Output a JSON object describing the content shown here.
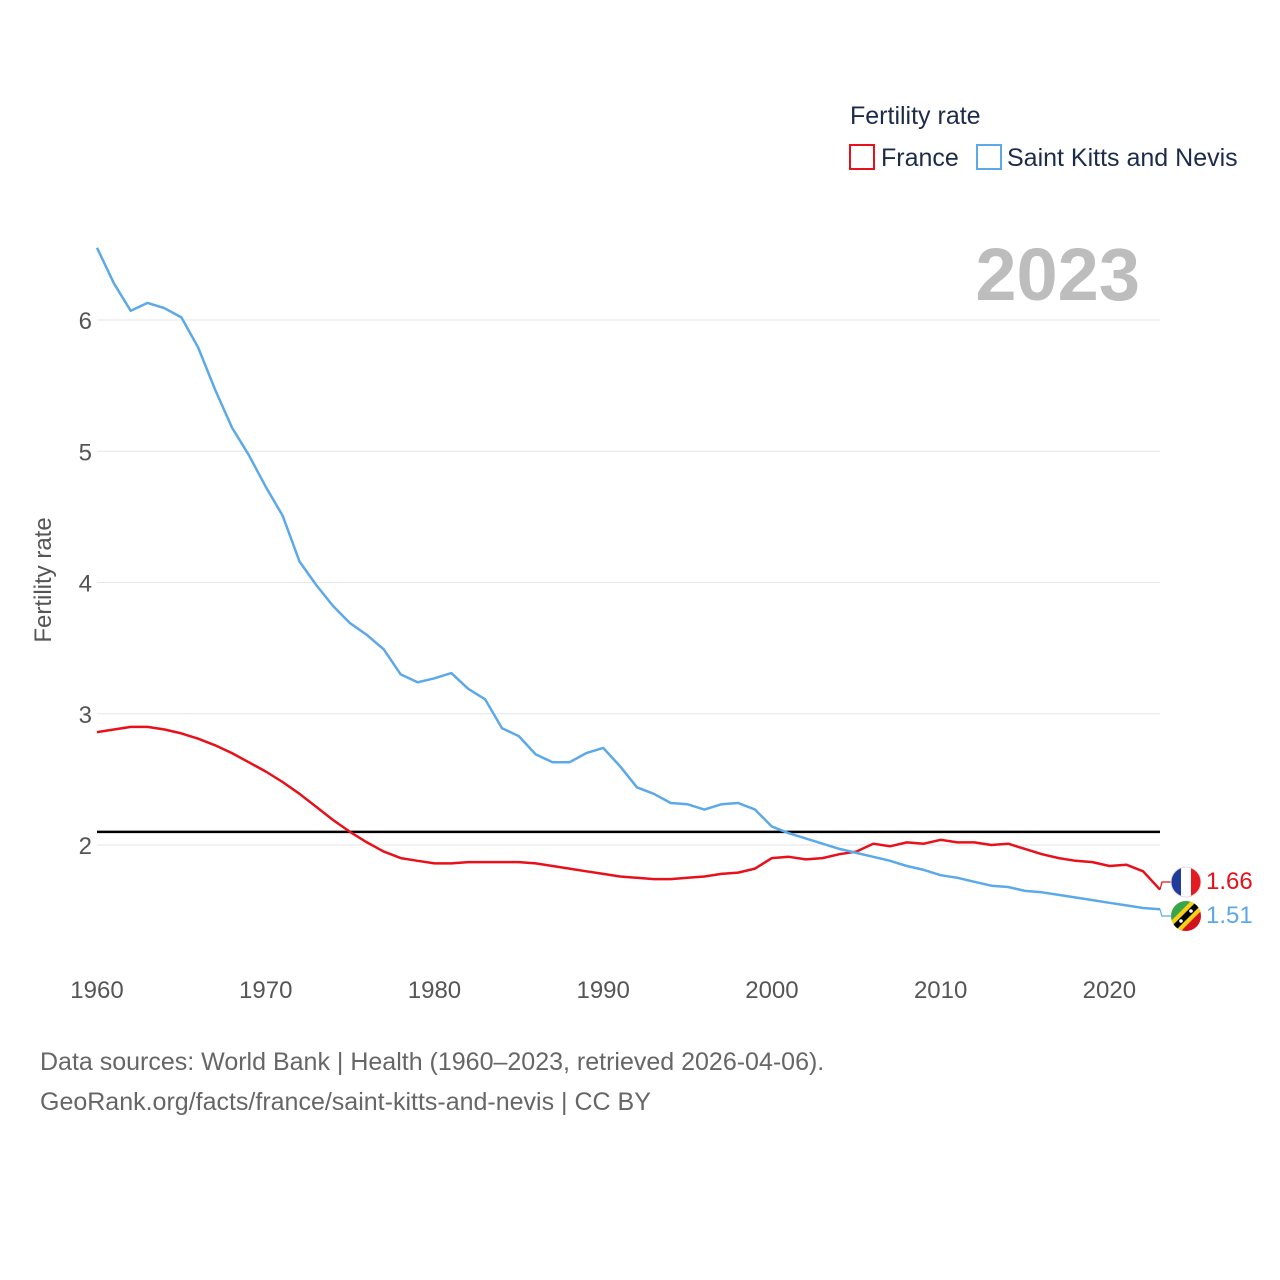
{
  "chart_data": {
    "type": "line",
    "title": "Fertility rate",
    "ylabel": "Fertility rate",
    "xlabel": "",
    "highlight_year": "2023",
    "x_ticks": [
      1960,
      1970,
      1980,
      1990,
      2000,
      2010,
      2020
    ],
    "y_ticks": [
      2,
      3,
      4,
      5,
      6
    ],
    "xlim": [
      1960,
      2023
    ],
    "ylim": [
      1.0,
      6.6
    ],
    "reference_line": {
      "value": 2.1,
      "color": "#000000"
    },
    "grid": true,
    "legend_position": "top-right",
    "x": [
      1960,
      1961,
      1962,
      1963,
      1964,
      1965,
      1966,
      1967,
      1968,
      1969,
      1970,
      1971,
      1972,
      1973,
      1974,
      1975,
      1976,
      1977,
      1978,
      1979,
      1980,
      1981,
      1982,
      1983,
      1984,
      1985,
      1986,
      1987,
      1988,
      1989,
      1990,
      1991,
      1992,
      1993,
      1994,
      1995,
      1996,
      1997,
      1998,
      1999,
      2000,
      2001,
      2002,
      2003,
      2004,
      2005,
      2006,
      2007,
      2008,
      2009,
      2010,
      2011,
      2012,
      2013,
      2014,
      2015,
      2016,
      2017,
      2018,
      2019,
      2020,
      2021,
      2022,
      2023
    ],
    "series": [
      {
        "name": "France",
        "color": "#e8101a",
        "end_label": "1.66",
        "values": [
          2.86,
          2.88,
          2.9,
          2.9,
          2.88,
          2.85,
          2.81,
          2.76,
          2.7,
          2.63,
          2.56,
          2.48,
          2.39,
          2.29,
          2.19,
          2.1,
          2.02,
          1.95,
          1.9,
          1.88,
          1.86,
          1.86,
          1.87,
          1.87,
          1.87,
          1.87,
          1.86,
          1.84,
          1.82,
          1.8,
          1.78,
          1.76,
          1.75,
          1.74,
          1.74,
          1.75,
          1.76,
          1.78,
          1.79,
          1.82,
          1.9,
          1.91,
          1.89,
          1.9,
          1.93,
          1.95,
          2.01,
          1.99,
          2.02,
          2.01,
          2.04,
          2.02,
          2.02,
          2.0,
          2.01,
          1.97,
          1.93,
          1.9,
          1.88,
          1.87,
          1.84,
          1.85,
          1.8,
          1.66
        ]
      },
      {
        "name": "Saint Kitts and Nevis",
        "color": "#5ca9e8",
        "end_label": "1.51",
        "values": [
          6.55,
          6.28,
          6.07,
          6.13,
          6.09,
          6.02,
          5.79,
          5.47,
          5.18,
          4.97,
          4.73,
          4.51,
          4.16,
          3.98,
          3.82,
          3.69,
          3.6,
          3.49,
          3.3,
          3.24,
          3.27,
          3.31,
          3.19,
          3.11,
          2.89,
          2.83,
          2.69,
          2.63,
          2.63,
          2.7,
          2.74,
          2.6,
          2.44,
          2.39,
          2.32,
          2.31,
          2.27,
          2.31,
          2.32,
          2.27,
          2.14,
          2.09,
          2.05,
          2.01,
          1.97,
          1.94,
          1.91,
          1.88,
          1.84,
          1.81,
          1.77,
          1.75,
          1.72,
          1.69,
          1.68,
          1.65,
          1.64,
          1.62,
          1.6,
          1.58,
          1.56,
          1.54,
          1.52,
          1.51
        ]
      }
    ]
  },
  "footer": {
    "line1": "Data sources: World Bank | Health (1960–2023, retrieved 2026-04-06).",
    "line2": "GeoRank.org/facts/france/saint-kitts-and-nevis | CC BY"
  }
}
